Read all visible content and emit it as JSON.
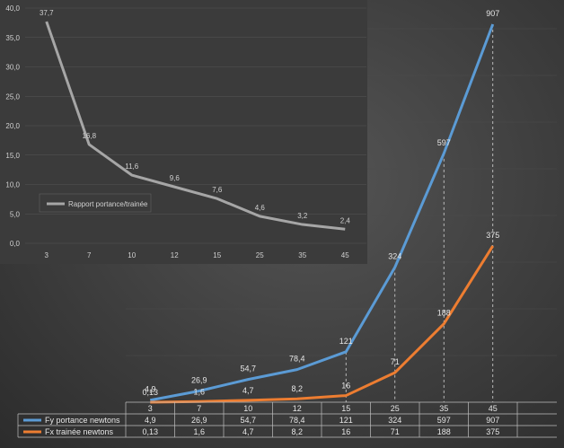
{
  "chart_data": [
    {
      "type": "line",
      "categories": [
        "3",
        "7",
        "10",
        "12",
        "15",
        "25",
        "35",
        "45"
      ],
      "series": [
        {
          "name": "Rapport portance/trainée",
          "values": [
            37.7,
            16.8,
            11.6,
            9.6,
            7.6,
            4.6,
            3.2,
            2.4
          ],
          "labels": [
            "37,7",
            "16,8",
            "11,6",
            "9,6",
            "7,6",
            "4,6",
            "3,2",
            "2,4"
          ],
          "color": "#a6a6a6"
        }
      ],
      "ylim": [
        0,
        40
      ],
      "yticks": [
        "0,0",
        "5,0",
        "10,0",
        "15,0",
        "20,0",
        "25,0",
        "30,0",
        "35,0",
        "40,0"
      ],
      "grid": true,
      "legend": "bottom-left"
    },
    {
      "type": "line",
      "categories": [
        "3",
        "7",
        "10",
        "12",
        "15",
        "25",
        "35",
        "45"
      ],
      "series": [
        {
          "name": "Fy portance  newtons",
          "values": [
            4.9,
            26.9,
            54.7,
            78.4,
            121,
            324,
            597,
            907
          ],
          "labels": [
            "4,9",
            "26,9",
            "54,7",
            "78,4",
            "121",
            "324",
            "597",
            "907"
          ],
          "color": "#5b9bd5"
        },
        {
          "name": "Fx trainée  newtons",
          "values": [
            0.13,
            1.6,
            4.7,
            8.2,
            16,
            71,
            188,
            375
          ],
          "labels": [
            "0,13",
            "1,6",
            "4,7",
            "8,2",
            "16",
            "71",
            "188",
            "375"
          ],
          "color": "#ed7d31"
        }
      ],
      "ylim": [
        0,
        907
      ],
      "grid": true,
      "legend": "data-table"
    }
  ]
}
